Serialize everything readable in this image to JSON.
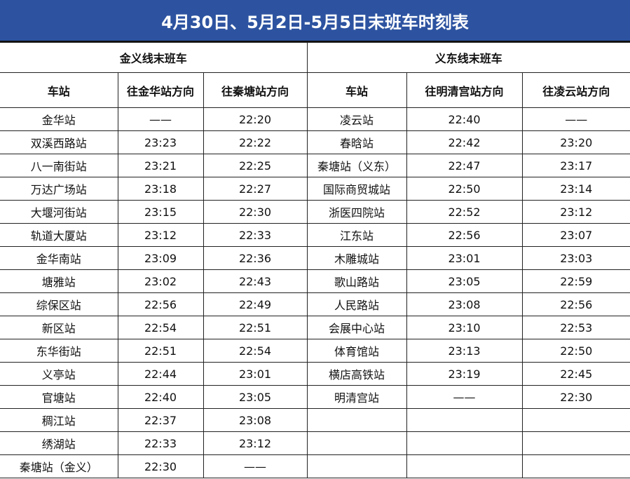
{
  "title": "4月30日、5月2日-5月5日末班车时刻表",
  "jinyi": {
    "line_name": "金义线末班车",
    "headers": [
      "车站",
      "往金华站方向",
      "往秦塘站方向"
    ],
    "rows": [
      [
        "金华站",
        "——",
        "22:20"
      ],
      [
        "双溪西路站",
        "23:23",
        "22:22"
      ],
      [
        "八一南街站",
        "23:21",
        "22:25"
      ],
      [
        "万达广场站",
        "23:18",
        "22:27"
      ],
      [
        "大堰河街站",
        "23:15",
        "22:30"
      ],
      [
        "轨道大厦站",
        "23:12",
        "22:33"
      ],
      [
        "金华南站",
        "23:09",
        "22:36"
      ],
      [
        "塘雅站",
        "23:02",
        "22:43"
      ],
      [
        "综保区站",
        "22:56",
        "22:49"
      ],
      [
        "新区站",
        "22:54",
        "22:51"
      ],
      [
        "东华街站",
        "22:51",
        "22:54"
      ],
      [
        "义亭站",
        "22:44",
        "23:01"
      ],
      [
        "官塘站",
        "22:40",
        "23:05"
      ],
      [
        "稠江站",
        "22:37",
        "23:08"
      ],
      [
        "绣湖站",
        "22:33",
        "23:12"
      ],
      [
        "秦塘站（金义）",
        "22:30",
        "——"
      ]
    ]
  },
  "yidong": {
    "line_name": "义东线末班车",
    "headers": [
      "车站",
      "往明清宫站方向",
      "往凌云站方向"
    ],
    "rows": [
      [
        "凌云站",
        "22:40",
        "——"
      ],
      [
        "春晗站",
        "22:42",
        "23:20"
      ],
      [
        "秦塘站（义东）",
        "22:47",
        "23:17"
      ],
      [
        "国际商贸城站",
        "22:50",
        "23:14"
      ],
      [
        "浙医四院站",
        "22:52",
        "23:12"
      ],
      [
        "江东站",
        "22:56",
        "23:07"
      ],
      [
        "木雕城站",
        "23:01",
        "23:03"
      ],
      [
        "歌山路站",
        "23:05",
        "22:59"
      ],
      [
        "人民路站",
        "23:08",
        "22:56"
      ],
      [
        "会展中心站",
        "23:10",
        "22:53"
      ],
      [
        "体育馆站",
        "23:13",
        "22:50"
      ],
      [
        "横店高铁站",
        "23:19",
        "22:45"
      ],
      [
        "明清宫站",
        "——",
        "22:30"
      ],
      [
        "",
        "",
        ""
      ],
      [
        "",
        "",
        ""
      ],
      [
        "",
        "",
        ""
      ]
    ]
  }
}
